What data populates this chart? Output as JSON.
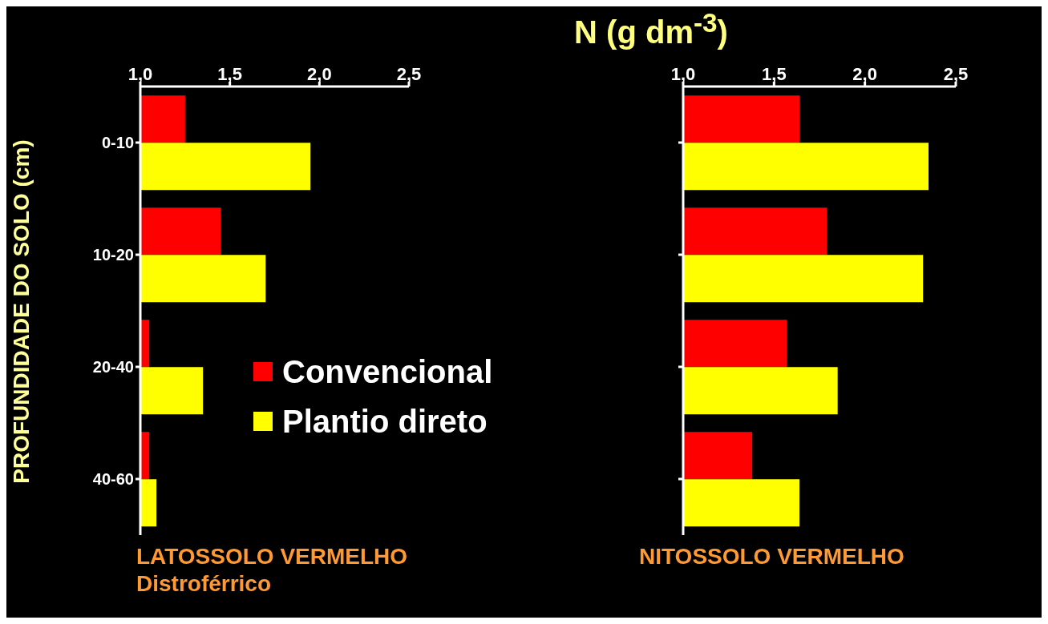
{
  "chart_data": [
    {
      "type": "bar",
      "orientation": "horizontal",
      "ylabel": "PROFUNDIDADE DO SOLO (cm)",
      "xlabel": "LATOSSOLO VERMELHO Distroférrico",
      "categories": [
        "0-10",
        "10-20",
        "20-40",
        "40-60"
      ],
      "series": [
        {
          "name": "Convencional",
          "color": "#ff0000",
          "values": [
            1.25,
            1.45,
            1.05,
            1.05
          ]
        },
        {
          "name": "Plantio direto",
          "color": "#ffff00",
          "values": [
            1.95,
            1.7,
            1.35,
            1.09
          ]
        }
      ],
      "xlim": [
        1,
        2.5
      ],
      "xticks": [
        {
          "value": 1,
          "label": "1,0"
        },
        {
          "value": 1.5,
          "label": "1,5"
        },
        {
          "value": 2,
          "label": "2,0"
        },
        {
          "value": 2.5,
          "label": "2,5"
        }
      ],
      "grid": false,
      "legend": "bottom right"
    },
    {
      "type": "bar",
      "orientation": "horizontal",
      "title": "N (g dm$^{-3}$)",
      "xlabel": "NITOSSOLO VERMELHO",
      "categories": [
        null,
        null,
        null,
        null
      ],
      "series": [
        {
          "color": "#ff0000",
          "values": [
            1.64,
            1.79,
            1.57,
            1.38
          ]
        },
        {
          "color": "#ffff00",
          "values": [
            2.35,
            2.32,
            1.85,
            1.64
          ]
        }
      ],
      "xlim": [
        1,
        2.5
      ],
      "xticks": [
        {
          "value": 1,
          "label": "1,0"
        },
        {
          "value": 1.5,
          "label": "1,5"
        },
        {
          "value": 2,
          "label": "2,0"
        },
        {
          "value": 2.5,
          "label": "2,5"
        }
      ],
      "grid": false,
      "legend": false
    }
  ]
}
